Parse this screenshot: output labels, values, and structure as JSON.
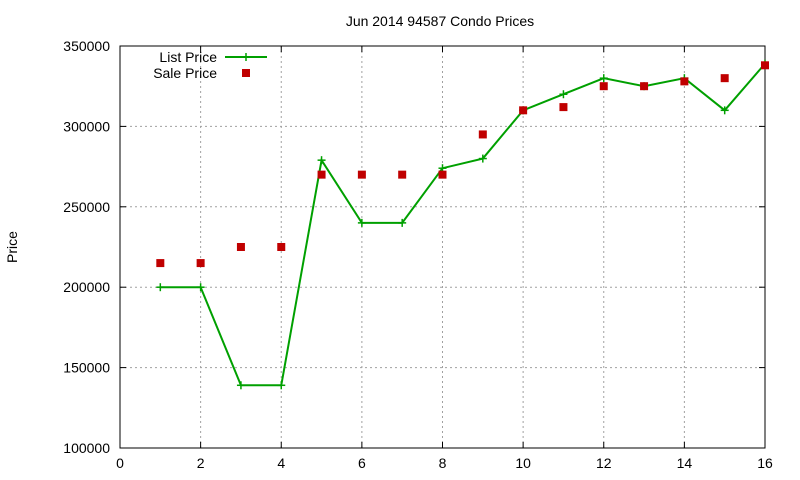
{
  "chart_data": {
    "type": "line",
    "title": "Jun 2014 94587 Condo Prices",
    "xlabel": "",
    "ylabel": "Price",
    "xlim": [
      0,
      16
    ],
    "ylim": [
      100000,
      350000
    ],
    "xticks": [
      0,
      2,
      4,
      6,
      8,
      10,
      12,
      14,
      16
    ],
    "yticks": [
      100000,
      150000,
      200000,
      250000,
      300000,
      350000
    ],
    "grid": true,
    "legend_position": "top-left",
    "series": [
      {
        "name": "List Price",
        "style": "line+cross",
        "color": "#00a000",
        "x": [
          1,
          2,
          3,
          4,
          5,
          6,
          7,
          8,
          9,
          10,
          11,
          12,
          13,
          14,
          15,
          16
        ],
        "y": [
          200000,
          200000,
          139000,
          139000,
          279000,
          240000,
          240000,
          274000,
          280000,
          310000,
          320000,
          330000,
          325000,
          330000,
          310000,
          339000
        ]
      },
      {
        "name": "Sale Price",
        "style": "square",
        "color": "#c00000",
        "x": [
          1,
          2,
          3,
          4,
          5,
          6,
          7,
          8,
          9,
          10,
          11,
          12,
          13,
          14,
          15,
          16
        ],
        "y": [
          215000,
          215000,
          225000,
          225000,
          270000,
          270000,
          270000,
          270000,
          295000,
          310000,
          312000,
          325000,
          325000,
          328000,
          330000,
          338000
        ]
      }
    ]
  }
}
